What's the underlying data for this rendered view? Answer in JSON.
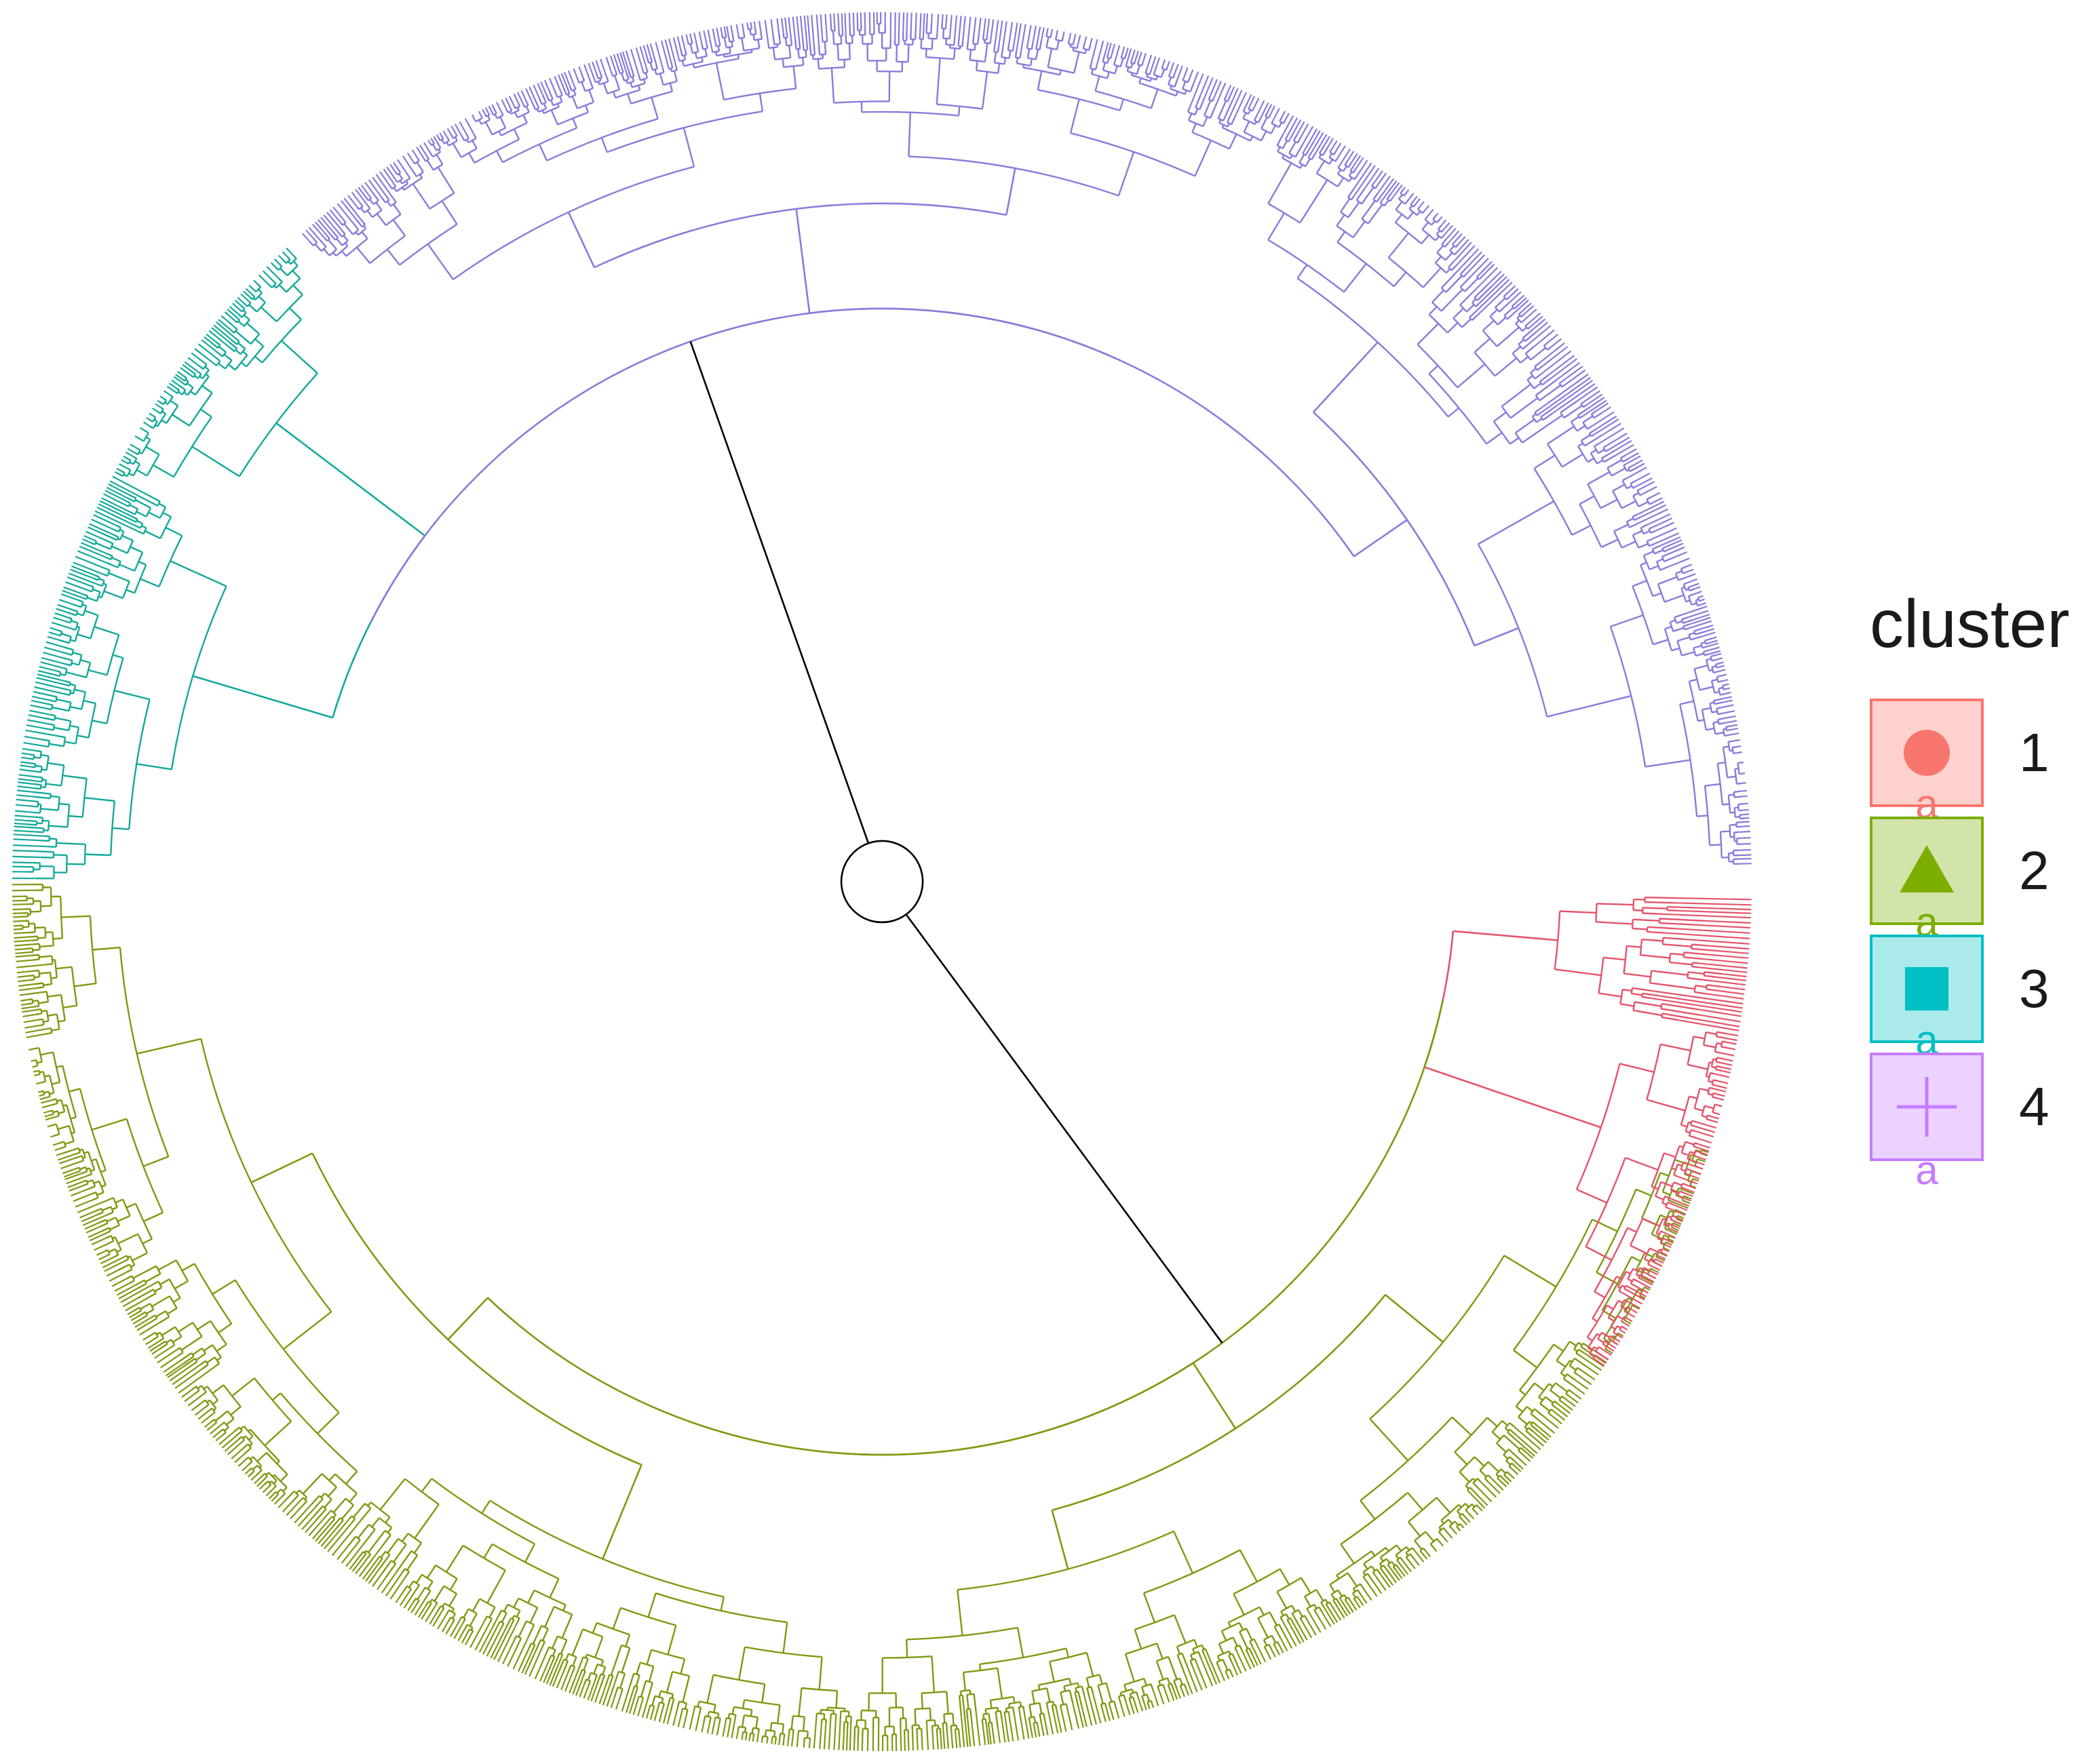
{
  "chart_data": {
    "type": "circular-dendrogram",
    "clusters": [
      {
        "id": "1",
        "color": "#E4546B",
        "shape": "circle"
      },
      {
        "id": "2",
        "color": "#7E9A12",
        "shape": "triangle"
      },
      {
        "id": "3",
        "color": "#14A99A",
        "shape": "square"
      },
      {
        "id": "4",
        "color": "#8A7BDB",
        "shape": "plus"
      }
    ],
    "root_color": "#000000"
  },
  "legend": {
    "title": "cluster",
    "items": [
      {
        "label": "1",
        "color": "#F8766D",
        "shape": "circle",
        "glyph": "a"
      },
      {
        "label": "2",
        "color": "#7CAE00",
        "shape": "triangle",
        "glyph": "a"
      },
      {
        "label": "3",
        "color": "#00BFC4",
        "shape": "square",
        "glyph": "a"
      },
      {
        "label": "4",
        "color": "#C77CFF",
        "shape": "plus",
        "glyph": "a"
      }
    ]
  }
}
